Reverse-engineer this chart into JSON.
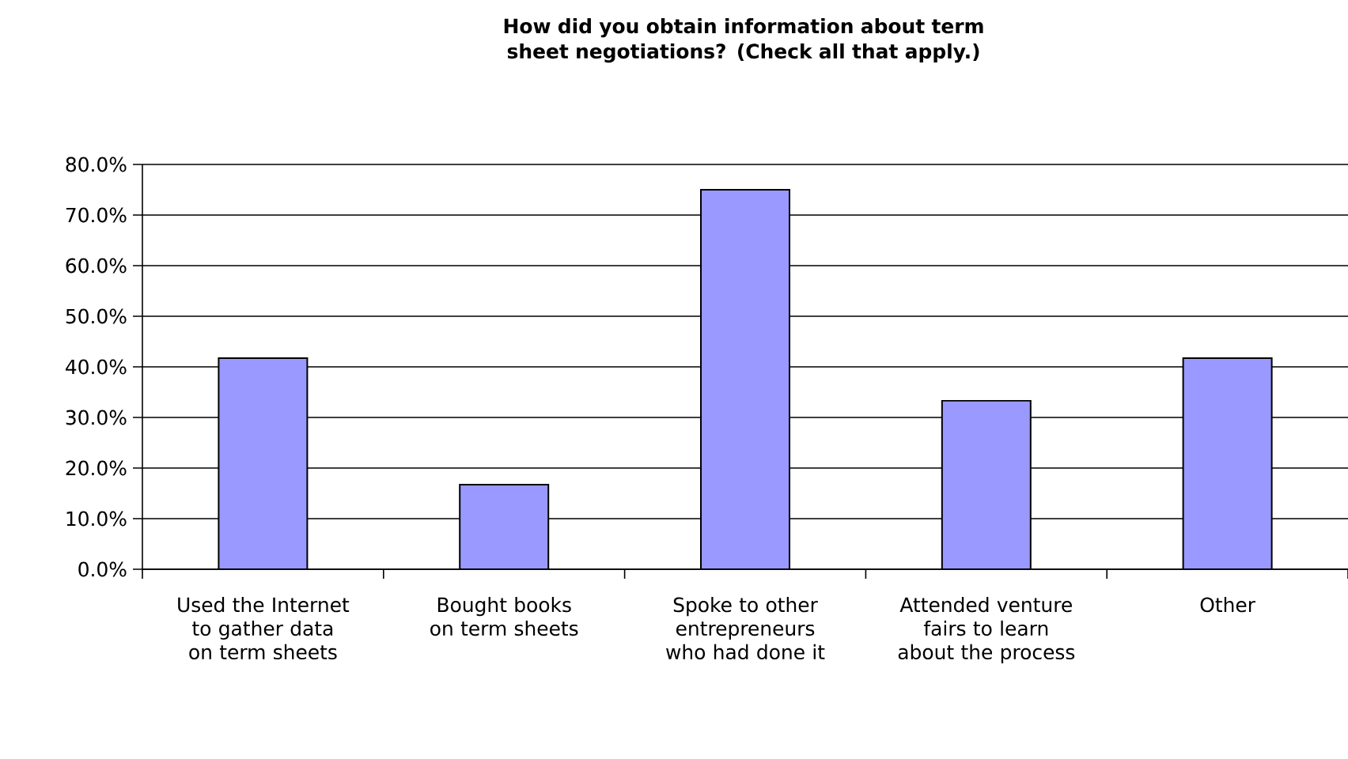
{
  "chart_data": {
    "type": "bar",
    "title": "How did you obtain information about term sheet negotiations? (Check all that apply.)",
    "categories": [
      "Used the Internet to gather data on term sheets",
      "Bought books on term sheets",
      "Spoke to other entrepreneurs who had done it",
      "Attended venture fairs to learn about the process",
      "Other"
    ],
    "values": [
      41.7,
      16.7,
      75.0,
      33.3,
      41.7
    ],
    "color": "#9999ff",
    "ylim": [
      0,
      80
    ],
    "yticks": [
      {
        "value": 0,
        "label": "0.0%"
      },
      {
        "value": 10,
        "label": "10.0%"
      },
      {
        "value": 20,
        "label": "20.0%"
      },
      {
        "value": 30,
        "label": "30.0%"
      },
      {
        "value": 40,
        "label": "40.0%"
      },
      {
        "value": 50,
        "label": "50.0%"
      },
      {
        "value": 60,
        "label": "60.0%"
      },
      {
        "value": 70,
        "label": "70.0%"
      },
      {
        "value": 80,
        "label": "80.0%"
      }
    ],
    "grid": "y"
  }
}
